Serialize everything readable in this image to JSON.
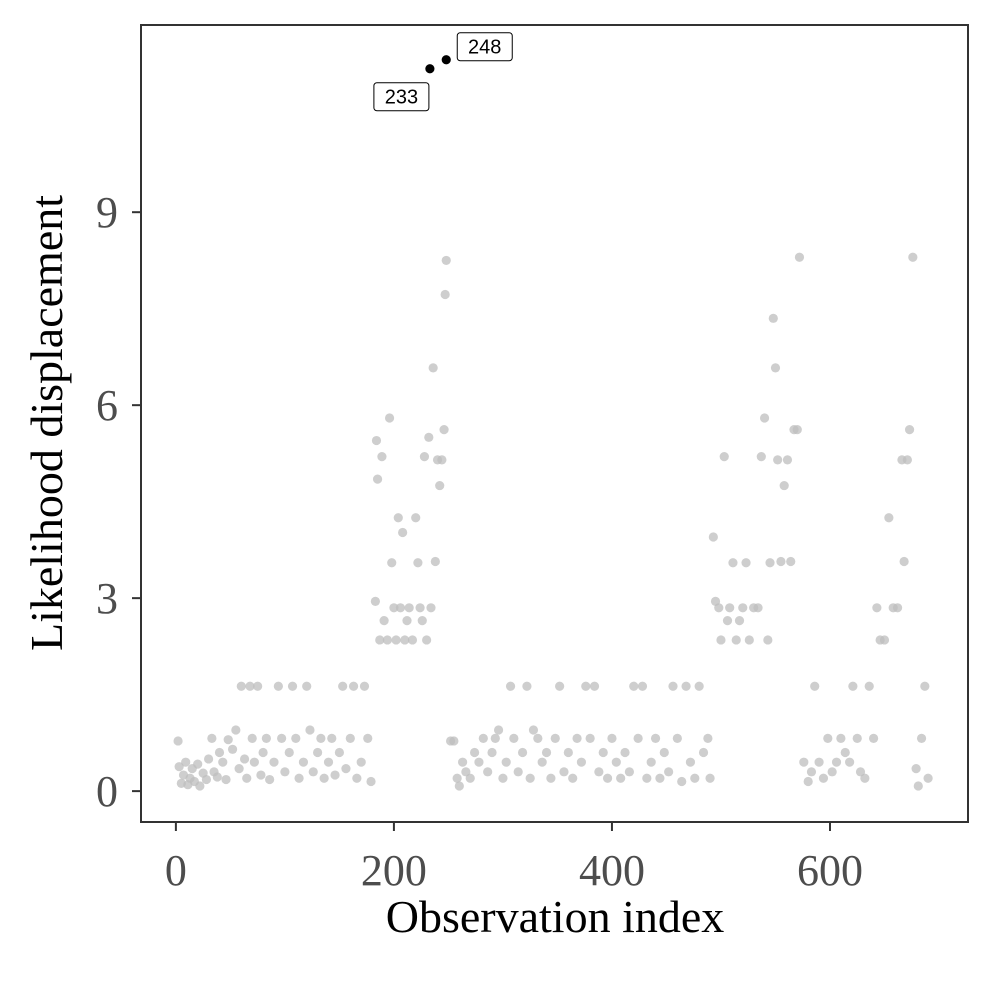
{
  "chart_data": {
    "type": "scatter",
    "xlabel": "Observation index",
    "ylabel": "Likelihood displacement",
    "xlim": [
      -32,
      726.6
    ],
    "ylim": [
      -0.48,
      11.91
    ],
    "xticks": [
      0,
      200,
      400,
      600
    ],
    "yticks": [
      0,
      3,
      6,
      9
    ],
    "series": [
      {
        "color": "#bdbdbd",
        "x": [
          2,
          3,
          5,
          7,
          9,
          11,
          13,
          15,
          17,
          20,
          22,
          25,
          28,
          30,
          33,
          35,
          38,
          40,
          43,
          46,
          48,
          52,
          55,
          58,
          60,
          63,
          65,
          68,
          70,
          72,
          75,
          78,
          80,
          83,
          86,
          90,
          94,
          97,
          100,
          104,
          107,
          110,
          113,
          117,
          120,
          123,
          126,
          130,
          133,
          136,
          140,
          143,
          146,
          150,
          153,
          156,
          160,
          163,
          166,
          170,
          173,
          176,
          179,
          183,
          184,
          185,
          187,
          189,
          191,
          194,
          196,
          198,
          200,
          202,
          204,
          206,
          208,
          210,
          212,
          214,
          217,
          220,
          222,
          224,
          226,
          228,
          230,
          232,
          234,
          236,
          238,
          240,
          242,
          244,
          246,
          247,
          248,
          252,
          255,
          258,
          260,
          263,
          266,
          270,
          274,
          278,
          282,
          286,
          290,
          293,
          296,
          300,
          303,
          307,
          310,
          314,
          318,
          322,
          325,
          328,
          332,
          336,
          340,
          344,
          348,
          352,
          356,
          360,
          364,
          368,
          372,
          376,
          380,
          384,
          388,
          392,
          396,
          400,
          404,
          408,
          412,
          416,
          420,
          424,
          428,
          432,
          436,
          440,
          444,
          448,
          452,
          456,
          460,
          464,
          468,
          472,
          476,
          480,
          484,
          488,
          490,
          493,
          495,
          498,
          500,
          503,
          506,
          508,
          511,
          514,
          517,
          520,
          523,
          526,
          530,
          534,
          537,
          540,
          543,
          545,
          548,
          550,
          552,
          555,
          558,
          561,
          564,
          567,
          570,
          572,
          576,
          580,
          583,
          586,
          590,
          594,
          598,
          602,
          606,
          610,
          614,
          618,
          621,
          625,
          628,
          632,
          636,
          640,
          643,
          646,
          650,
          654,
          658,
          662,
          666,
          668,
          671,
          673,
          676,
          679,
          681,
          684,
          687,
          690
        ],
        "values": [
          0.78,
          0.38,
          0.12,
          0.25,
          0.45,
          0.1,
          0.2,
          0.35,
          0.15,
          0.42,
          0.08,
          0.28,
          0.18,
          0.5,
          0.82,
          0.3,
          0.22,
          0.6,
          0.45,
          0.18,
          0.8,
          0.65,
          0.95,
          0.35,
          1.63,
          0.5,
          0.2,
          1.63,
          0.82,
          0.45,
          1.63,
          0.25,
          0.6,
          0.82,
          0.18,
          0.45,
          1.63,
          0.82,
          0.3,
          0.6,
          1.63,
          0.82,
          0.2,
          0.45,
          1.63,
          0.95,
          0.3,
          0.6,
          0.82,
          0.2,
          0.45,
          0.82,
          0.25,
          0.6,
          1.63,
          0.35,
          0.82,
          1.63,
          0.2,
          0.45,
          1.63,
          0.82,
          0.15,
          2.95,
          5.45,
          4.85,
          2.35,
          5.2,
          2.65,
          2.35,
          5.8,
          3.55,
          2.85,
          2.35,
          4.25,
          2.85,
          4.02,
          2.35,
          2.65,
          2.85,
          2.35,
          4.25,
          3.55,
          2.85,
          2.65,
          5.2,
          2.35,
          5.5,
          2.85,
          6.58,
          3.57,
          5.15,
          4.75,
          5.15,
          5.62,
          7.72,
          8.25,
          0.78,
          0.78,
          0.2,
          0.08,
          0.45,
          0.3,
          0.2,
          0.6,
          0.45,
          0.82,
          0.3,
          0.6,
          0.82,
          0.95,
          0.2,
          0.45,
          1.63,
          0.82,
          0.3,
          0.6,
          1.63,
          0.2,
          0.95,
          0.82,
          0.45,
          0.6,
          0.2,
          0.82,
          1.63,
          0.3,
          0.6,
          0.2,
          0.82,
          0.45,
          1.63,
          0.82,
          1.63,
          0.3,
          0.6,
          0.2,
          0.82,
          0.45,
          0.2,
          0.6,
          0.3,
          1.63,
          0.82,
          1.63,
          0.2,
          0.45,
          0.82,
          0.2,
          0.6,
          0.3,
          1.63,
          0.82,
          0.15,
          1.63,
          0.45,
          0.2,
          1.63,
          0.6,
          0.82,
          0.2,
          3.95,
          2.95,
          2.85,
          2.35,
          5.2,
          2.65,
          2.85,
          3.55,
          2.35,
          2.65,
          2.85,
          3.55,
          2.35,
          2.85,
          2.85,
          5.2,
          5.8,
          2.35,
          3.55,
          7.35,
          6.58,
          5.15,
          3.57,
          4.75,
          5.15,
          3.57,
          5.62,
          5.62,
          8.3,
          0.45,
          0.15,
          0.3,
          1.63,
          0.45,
          0.2,
          0.82,
          0.3,
          0.45,
          0.82,
          0.6,
          0.45,
          1.63,
          0.82,
          0.3,
          0.2,
          1.63,
          0.82,
          2.85,
          2.35,
          2.35,
          4.25,
          2.85,
          2.85,
          5.15,
          3.57,
          5.15,
          5.62,
          8.3,
          0.35,
          0.08,
          0.82,
          1.63,
          0.2
        ]
      },
      {
        "color": "#000000",
        "x": [
          233,
          248
        ],
        "values": [
          11.23,
          11.37
        ]
      }
    ],
    "annotations": [
      "233",
      "248"
    ]
  }
}
